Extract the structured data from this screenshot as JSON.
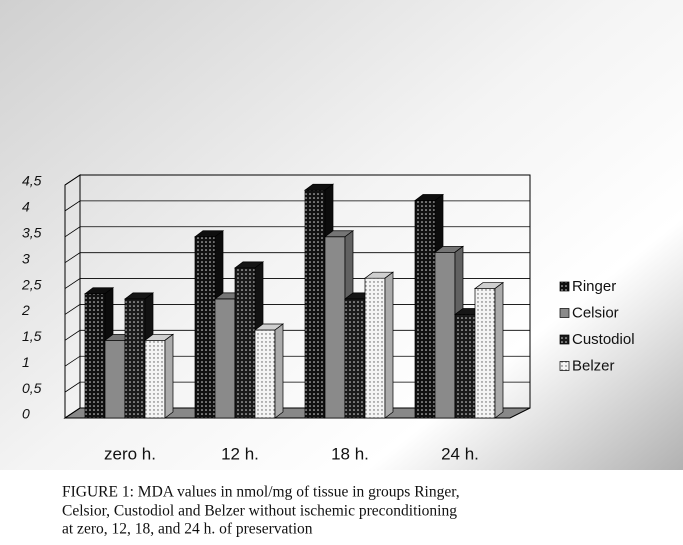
{
  "chart_data": {
    "type": "bar",
    "categories": [
      "zero h.",
      "12 h.",
      "18 h.",
      "24 h."
    ],
    "series": [
      {
        "name": "Ringer",
        "color": "#111111",
        "values": [
          2.4,
          3.5,
          4.4,
          4.2
        ]
      },
      {
        "name": "Celsior",
        "color": "#8a8a8a",
        "values": [
          1.5,
          2.3,
          3.5,
          3.2
        ]
      },
      {
        "name": "Custodiol",
        "color": "#1a1a1a",
        "values": [
          2.3,
          2.9,
          2.3,
          2.0
        ]
      },
      {
        "name": "Belzer",
        "color": "#f4f4f4",
        "values": [
          1.5,
          1.7,
          2.7,
          2.5
        ]
      }
    ],
    "ylim": [
      0,
      4.5
    ],
    "yticks": [
      0,
      {
        "value": 0.5,
        "label": "0,5"
      },
      1,
      {
        "value": 1.5,
        "label": "1,5"
      },
      2,
      {
        "value": 2.5,
        "label": "2,5"
      },
      3,
      {
        "value": 3.5,
        "label": "3,5"
      },
      4,
      {
        "value": 4.5,
        "label": "4,5"
      }
    ],
    "grid": true,
    "legend": "right",
    "caption": [
      "FIGURE 1: MDA values in nmol/mg of tissue in groups  Ringer,",
      "Celsior, Custodiol and Belzer without ischemic preconditioning",
      "at zero, 12, 18, and 24 h. of preservation"
    ]
  }
}
